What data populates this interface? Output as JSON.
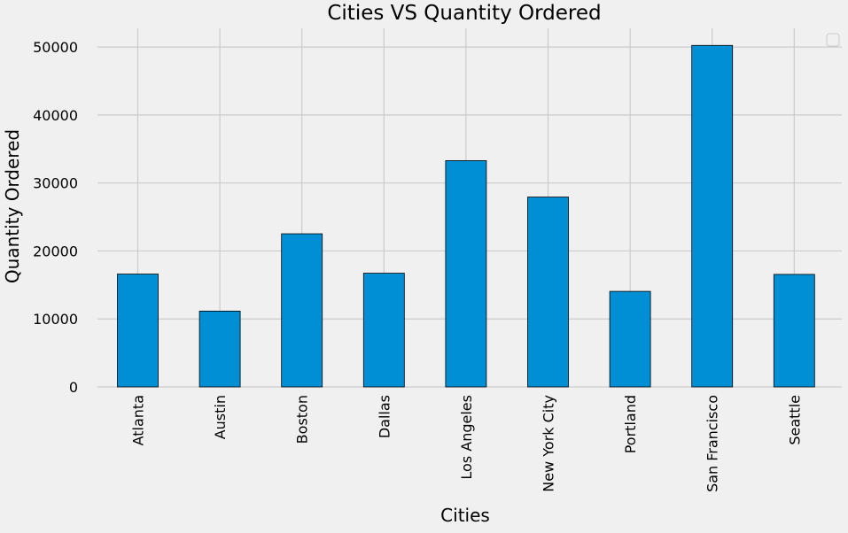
{
  "chart_data": {
    "type": "bar",
    "title": "Cities VS Quantity Ordered",
    "xlabel": "Cities",
    "ylabel": "Quantity Ordered",
    "categories": [
      "Atlanta",
      "Austin",
      "Boston",
      "Dallas",
      "Los Angeles",
      "New York City",
      "Portland",
      "San Francisco",
      "Seattle"
    ],
    "values": [
      16602,
      11153,
      22528,
      16730,
      33289,
      27932,
      14053,
      50239,
      16553
    ],
    "yticks": [
      0,
      10000,
      20000,
      30000,
      40000,
      50000
    ],
    "ylim": [
      0,
      52750
    ],
    "grid": true,
    "legend": "top-right, empty",
    "bar_color": "#008fd5",
    "bar_edge_color": "#000000",
    "background_color": "#f0f0f0",
    "grid_color": "#cbcbcb",
    "text_color": "#000000"
  }
}
